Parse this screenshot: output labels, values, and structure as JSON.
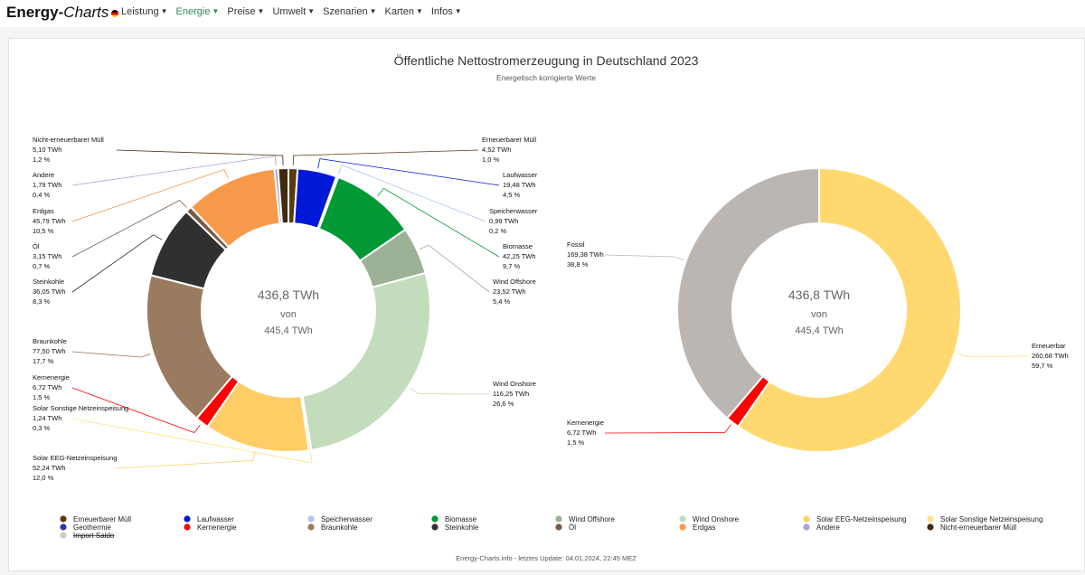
{
  "nav": {
    "brand_a": "Energy-",
    "brand_b": "Charts",
    "items": [
      "Leistung",
      "Energie",
      "Preise",
      "Umwelt",
      "Szenarien",
      "Karten",
      "Infos"
    ],
    "active": "Energie"
  },
  "chart_data": [
    {
      "type": "pie",
      "title": "Öffentliche Nettostromerzeugung in Deutschland 2023",
      "subtitle": "Energetisch korrigierte Werte",
      "center": {
        "main": "436,8 TWh",
        "mid": "von",
        "bottom": "445,4 TWh"
      },
      "slices": [
        {
          "name": "Erneuerbarer Müll",
          "value": 4.52,
          "value_label": "4,52 TWh",
          "pct": "1,0 %",
          "color": "#5a3a0a"
        },
        {
          "name": "Laufwasser",
          "value": 19.48,
          "value_label": "19,48 TWh",
          "pct": "4,5 %",
          "color": "#0019d6"
        },
        {
          "name": "Speicherwasser",
          "value": 0.99,
          "value_label": "0,99 TWh",
          "pct": "0,2 %",
          "color": "#a9c4f0"
        },
        {
          "name": "Biomasse",
          "value": 42.25,
          "value_label": "42,25 TWh",
          "pct": "9,7 %",
          "color": "#009933"
        },
        {
          "name": "Wind Offshore",
          "value": 23.52,
          "value_label": "23,52 TWh",
          "pct": "5,4 %",
          "color": "#9cb196"
        },
        {
          "name": "Wind Onshore",
          "value": 116.25,
          "value_label": "116,25 TWh",
          "pct": "26,6 %",
          "color": "#c3dcbc"
        },
        {
          "name": "Solar Sonstige Netzeinspeisung",
          "value": 1.24,
          "value_label": "1,24 TWh",
          "pct": "0,3 %",
          "color": "#ffe57f"
        },
        {
          "name": "Solar EEG-Netzeinspeisung",
          "value": 52.24,
          "value_label": "52,24 TWh",
          "pct": "12,0 %",
          "color": "#ffcd66"
        },
        {
          "name": "Kernenergie",
          "value": 6.72,
          "value_label": "6,72 TWh",
          "pct": "1,5 %",
          "color": "#ff0000"
        },
        {
          "name": "Braunkohle",
          "value": 77.5,
          "value_label": "77,50 TWh",
          "pct": "17,7 %",
          "color": "#9a7b5f"
        },
        {
          "name": "Steinkohle",
          "value": 36.05,
          "value_label": "36,05 TWh",
          "pct": "8,3 %",
          "color": "#303030"
        },
        {
          "name": "Öl",
          "value": 3.15,
          "value_label": "3,15 TWh",
          "pct": "0,7 %",
          "color": "#7a5a45"
        },
        {
          "name": "Erdgas",
          "value": 45.79,
          "value_label": "45,79 TWh",
          "pct": "10,5 %",
          "color": "#f7994a"
        },
        {
          "name": "Andere",
          "value": 1.79,
          "value_label": "1,79 TWh",
          "pct": "0,4 %",
          "color": "#a9a3cf"
        },
        {
          "name": "Nicht-erneuerbarer Müll",
          "value": 5.1,
          "value_label": "5,10 TWh",
          "pct": "1,2 %",
          "color": "#402a10"
        }
      ]
    },
    {
      "type": "pie",
      "center": {
        "main": "436,8 TWh",
        "mid": "von",
        "bottom": "445,4 TWh"
      },
      "slices": [
        {
          "name": "Erneuerbar",
          "value": 260.68,
          "value_label": "260,68 TWh",
          "pct": "59,7 %",
          "color": "#ffd970"
        },
        {
          "name": "Kernenergie",
          "value": 6.72,
          "value_label": "6,72 TWh",
          "pct": "1,5 %",
          "color": "#ff0000"
        },
        {
          "name": "Fossil",
          "value": 169.38,
          "value_label": "169,38 TWh",
          "pct": "38,8 %",
          "color": "#bcb6b2"
        }
      ]
    }
  ],
  "legend": [
    {
      "name": "Erneuerbarer Müll",
      "color": "#5a3a0a"
    },
    {
      "name": "Laufwasser",
      "color": "#0019d6"
    },
    {
      "name": "Speicherwasser",
      "color": "#a9c4f0"
    },
    {
      "name": "Biomasse",
      "color": "#009933"
    },
    {
      "name": "Wind Offshore",
      "color": "#9cb196"
    },
    {
      "name": "Wind Onshore",
      "color": "#c3dcbc"
    },
    {
      "name": "Solar EEG-Netzeinspeisung",
      "color": "#ffcd66"
    },
    {
      "name": "Solar Sonstige Netzeinspeisung",
      "color": "#ffe57f"
    },
    {
      "name": "Geothermie",
      "color": "#3333aa"
    },
    {
      "name": "Kernenergie",
      "color": "#ff0000"
    },
    {
      "name": "Braunkohle",
      "color": "#9a7b5f"
    },
    {
      "name": "Steinkohle",
      "color": "#303030"
    },
    {
      "name": "Öl",
      "color": "#7a5a45"
    },
    {
      "name": "Erdgas",
      "color": "#f7994a"
    },
    {
      "name": "Andere",
      "color": "#a9a3cf"
    },
    {
      "name": "Nicht-erneuerbarer Müll",
      "color": "#402a10"
    },
    {
      "name": "Import Saldo",
      "color": "#cccccc",
      "hidden": true
    }
  ],
  "footer": "Energy-Charts.info - letztes Update: 04.01.2024, 22:45 MEZ"
}
